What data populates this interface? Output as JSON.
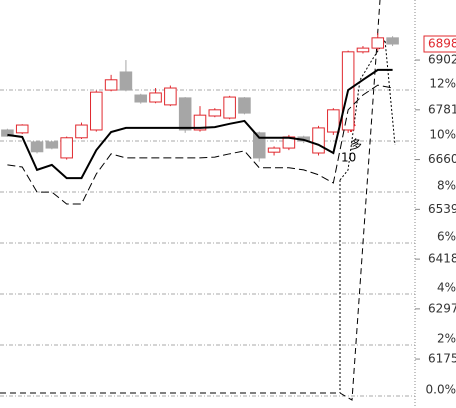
{
  "chart_data": {
    "type": "candlestick",
    "categories": [
      null,
      null,
      null,
      null,
      null,
      null,
      null,
      null,
      null,
      null,
      null,
      null,
      null,
      null,
      null,
      null,
      null,
      null,
      null,
      null,
      null,
      null,
      null,
      null,
      null,
      null,
      null
    ],
    "open": [
      6732,
      6725,
      6703,
      6703,
      6664,
      6713,
      6732,
      6829,
      6873,
      6817,
      6800,
      6793,
      6810,
      6732,
      6766,
      6761,
      6810,
      6725,
      6678,
      6688,
      6715,
      6676,
      6727,
      6732,
      6922,
      6931,
      6956
    ],
    "high": [
      6735,
      6746,
      6705,
      6705,
      6716,
      6750,
      6828,
      6866,
      6902,
      6820,
      6834,
      6840,
      6812,
      6790,
      6785,
      6815,
      6812,
      6728,
      6692,
      6720,
      6718,
      6742,
      6785,
      6925,
      6936,
      6968,
      6960
    ],
    "low": [
      6715,
      6722,
      6675,
      6685,
      6660,
      6710,
      6728,
      6826,
      6826,
      6796,
      6797,
      6790,
      6725,
      6728,
      6763,
      6758,
      6770,
      6655,
      6670,
      6683,
      6700,
      6670,
      6720,
      6725,
      6918,
      6925,
      6936
    ],
    "close": [
      6717,
      6744,
      6679,
      6688,
      6713,
      6744,
      6824,
      6854,
      6829,
      6800,
      6822,
      6834,
      6732,
      6768,
      6781,
      6812,
      6773,
      6664,
      6688,
      6715,
      6705,
      6737,
      6781,
      6922,
      6931,
      6956,
      6941
    ],
    "up_color": "#e0282e",
    "down_color": "#a6a6a6",
    "series": [
      {
        "color": "#000000",
        "dash": false,
        "values": [
          6720,
          6715,
          6635,
          6647,
          6615,
          6615,
          6683,
          6727,
          6737,
          6737,
          6737,
          6737,
          6737,
          6737,
          6739,
          6747,
          6754,
          6713,
          6713,
          6713,
          6708,
          6696,
          6676,
          6829,
          6854,
          6878,
          6878
        ]
      },
      {
        "color": "#000000",
        "dash": true,
        "values": [
          6647,
          6642,
          6581,
          6581,
          6552,
          6552,
          6625,
          6674,
          6664,
          6664,
          6664,
          6664,
          6664,
          6664,
          6666,
          6674,
          6681,
          6640,
          6640,
          6640,
          6635,
          6623,
          6603,
          6781,
          6817,
          6841,
          6834
        ]
      }
    ],
    "ylim": [
      6056,
      7048
    ],
    "yticks": [
      6902,
      6781,
      6660,
      6539,
      6418,
      6297,
      6175
    ],
    "y2lim": [
      -0.47,
      15.53
    ],
    "y2ticks": [
      {
        "value": 12,
        "label": "12%"
      },
      {
        "value": 10,
        "label": "10%"
      },
      {
        "value": 8,
        "label": "8%"
      },
      {
        "value": 6,
        "label": "6%"
      },
      {
        "value": 4,
        "label": "4%"
      },
      {
        "value": 2,
        "label": "2%"
      },
      {
        "value": 0,
        "label": "0.0%"
      }
    ],
    "grid": true,
    "last_price": 6898,
    "annotations": [
      "10",
      "多"
    ]
  }
}
